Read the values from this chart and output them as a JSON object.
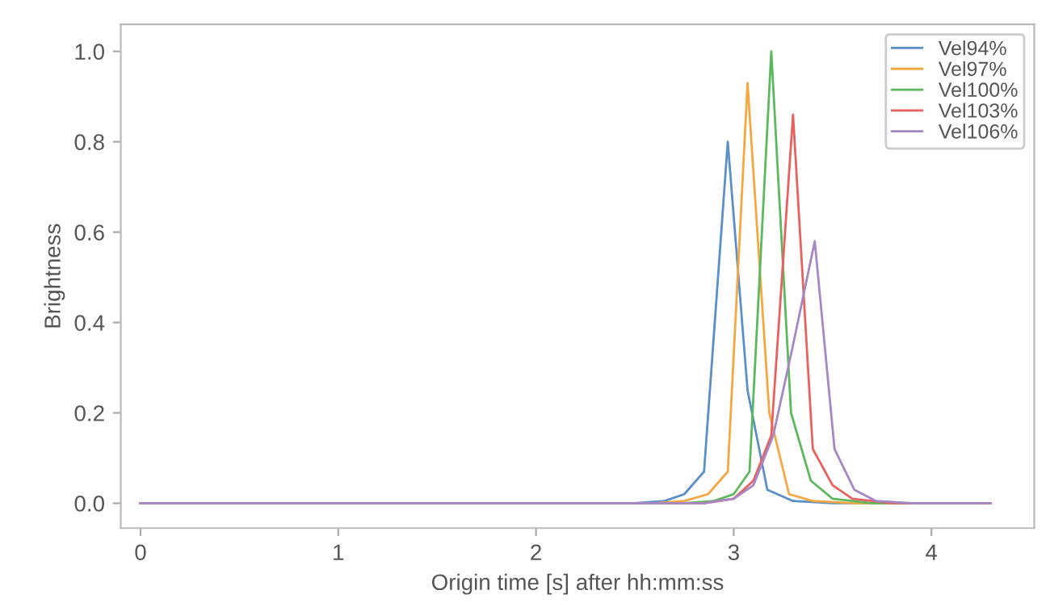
{
  "chart_data": {
    "type": "line",
    "xlabel": "Origin time [s] after hh:mm:ss",
    "ylabel": "Brightness",
    "xlim": [
      -0.1,
      4.52
    ],
    "ylim": [
      -0.055,
      1.06
    ],
    "xticks": [
      0,
      1,
      2,
      3,
      4
    ],
    "yticks": [
      {
        "value": 0,
        "label": "0.0"
      },
      {
        "value": 0.2,
        "label": "0.2"
      },
      {
        "value": 0.4,
        "label": "0.4"
      },
      {
        "value": 0.6,
        "label": "0.6"
      },
      {
        "value": 0.8,
        "label": "0.8"
      },
      {
        "value": 1.0,
        "label": "1.0"
      }
    ],
    "grid": false,
    "legend": "top right",
    "marker": "none",
    "line_style": "solid",
    "series": [
      {
        "name": "Vel94%",
        "color": "#5b8fc7",
        "x": [
          0,
          2.5,
          2.65,
          2.75,
          2.85,
          2.97,
          3.07,
          3.17,
          3.3,
          3.5,
          4.3
        ],
        "values": [
          0,
          0,
          0.005,
          0.02,
          0.07,
          0.8,
          0.25,
          0.03,
          0.005,
          0,
          0
        ]
      },
      {
        "name": "Vel97%",
        "color": "#f5a742",
        "x": [
          0,
          2.6,
          2.75,
          2.87,
          2.97,
          3.07,
          3.18,
          3.28,
          3.4,
          3.6,
          4.3
        ],
        "values": [
          0,
          0,
          0.005,
          0.02,
          0.07,
          0.93,
          0.2,
          0.02,
          0.005,
          0,
          0
        ]
      },
      {
        "name": "Vel100%",
        "color": "#5cb85c",
        "x": [
          0,
          2.75,
          2.9,
          3.0,
          3.08,
          3.19,
          3.29,
          3.39,
          3.5,
          3.7,
          4.3
        ],
        "values": [
          0,
          0,
          0.005,
          0.02,
          0.07,
          1.0,
          0.2,
          0.05,
          0.01,
          0,
          0
        ]
      },
      {
        "name": "Vel103%",
        "color": "#e8615f",
        "x": [
          0,
          2.85,
          3.0,
          3.1,
          3.19,
          3.3,
          3.4,
          3.5,
          3.6,
          3.8,
          4.3
        ],
        "values": [
          0,
          0,
          0.01,
          0.05,
          0.15,
          0.86,
          0.12,
          0.04,
          0.01,
          0,
          0
        ]
      },
      {
        "name": "Vel106%",
        "color": "#a487c4",
        "x": [
          0,
          2.85,
          3.0,
          3.1,
          3.2,
          3.3,
          3.41,
          3.51,
          3.61,
          3.72,
          3.9,
          4.3
        ],
        "values": [
          0,
          0,
          0.01,
          0.04,
          0.15,
          0.35,
          0.58,
          0.12,
          0.03,
          0.005,
          0,
          0
        ]
      }
    ]
  }
}
